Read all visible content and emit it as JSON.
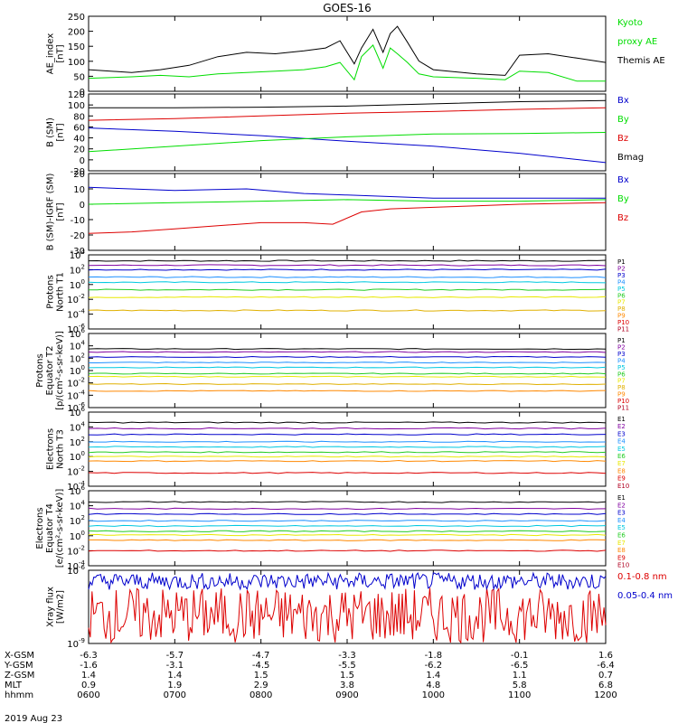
{
  "title": "GOES-16",
  "date_label": "2019 Aug 23",
  "colors": {
    "black": "#000000",
    "green": "#00dd00",
    "blue": "#0000cc",
    "red": "#dd0000"
  },
  "chart_data": [
    {
      "type": "line",
      "ylabel": [
        "AE_index",
        "[nT]"
      ],
      "yticks": [
        "250",
        "200",
        "150",
        "100",
        "50",
        "0"
      ],
      "ylim": [
        0,
        260
      ],
      "legend": [
        {
          "text": "Kyoto",
          "color": "green"
        },
        {
          "text": "proxy AE",
          "color": "green"
        },
        {
          "text": "Themis AE",
          "color": "black"
        }
      ],
      "series": [
        {
          "name": "Themis AE",
          "color": "black",
          "x": [
            "06:00",
            "06:30",
            "06:50",
            "07:10",
            "07:30",
            "07:50",
            "08:10",
            "08:30",
            "08:45",
            "08:55",
            "09:05",
            "09:10",
            "09:18",
            "09:25",
            "09:30",
            "09:35",
            "09:42",
            "09:50",
            "10:00",
            "10:30",
            "10:50",
            "11:00",
            "11:20",
            "11:40",
            "12:00"
          ],
          "y": [
            75,
            65,
            75,
            90,
            120,
            135,
            130,
            140,
            150,
            175,
            95,
            150,
            215,
            135,
            200,
            225,
            170,
            105,
            75,
            60,
            55,
            125,
            130,
            115,
            100
          ]
        },
        {
          "name": "Kyoto proxy AE",
          "color": "green",
          "x": [
            "06:00",
            "06:30",
            "06:50",
            "07:10",
            "07:30",
            "07:50",
            "08:10",
            "08:30",
            "08:45",
            "08:55",
            "09:05",
            "09:10",
            "09:18",
            "09:25",
            "09:30",
            "09:35",
            "09:42",
            "09:50",
            "10:00",
            "10:30",
            "10:50",
            "11:00",
            "11:20",
            "11:40",
            "12:00"
          ],
          "y": [
            45,
            50,
            55,
            50,
            60,
            65,
            70,
            75,
            85,
            100,
            40,
            120,
            160,
            80,
            150,
            130,
            100,
            60,
            50,
            45,
            40,
            70,
            65,
            35,
            35
          ]
        }
      ]
    },
    {
      "type": "line",
      "ylabel": [
        "B (SM)",
        "[nT]"
      ],
      "yticks": [
        "120",
        "100",
        "80",
        "60",
        "40",
        "20",
        "0",
        "-20"
      ],
      "ylim": [
        -20,
        120
      ],
      "legend": [
        {
          "text": "Bx",
          "color": "blue"
        },
        {
          "text": "By",
          "color": "green"
        },
        {
          "text": "Bz",
          "color": "red"
        },
        {
          "text": "Bmag",
          "color": "black"
        }
      ],
      "series": [
        {
          "name": "Bx",
          "color": "blue",
          "x": [
            "06:00",
            "07:00",
            "08:00",
            "09:00",
            "10:00",
            "11:00",
            "12:00"
          ],
          "y": [
            58,
            52,
            44,
            34,
            25,
            12,
            -5
          ]
        },
        {
          "name": "By",
          "color": "green",
          "x": [
            "06:00",
            "07:00",
            "08:00",
            "09:00",
            "10:00",
            "11:00",
            "12:00"
          ],
          "y": [
            15,
            25,
            35,
            42,
            47,
            48,
            50
          ]
        },
        {
          "name": "Bz",
          "color": "red",
          "x": [
            "06:00",
            "07:00",
            "08:00",
            "09:00",
            "10:00",
            "11:00",
            "12:00"
          ],
          "y": [
            72,
            75,
            80,
            85,
            88,
            92,
            95
          ]
        },
        {
          "name": "Bmag",
          "color": "black",
          "x": [
            "06:00",
            "07:00",
            "08:00",
            "09:00",
            "10:00",
            "11:00",
            "12:00"
          ],
          "y": [
            95,
            95,
            96,
            98,
            102,
            106,
            108
          ]
        }
      ]
    },
    {
      "type": "line",
      "ylabel": [
        "B (SM)-IGRF (SM)",
        "[nT]"
      ],
      "yticks": [
        "20",
        "10",
        "0",
        "-10",
        "-20",
        "-30"
      ],
      "ylim": [
        -30,
        20
      ],
      "legend": [
        {
          "text": "Bx",
          "color": "blue"
        },
        {
          "text": "By",
          "color": "green"
        },
        {
          "text": "Bz",
          "color": "red"
        }
      ],
      "series": [
        {
          "name": "Bx",
          "color": "blue",
          "x": [
            "06:00",
            "07:00",
            "07:50",
            "08:30",
            "09:00",
            "09:30",
            "10:00",
            "11:00",
            "12:00"
          ],
          "y": [
            11,
            9,
            10,
            7,
            6,
            5,
            4,
            4,
            4
          ]
        },
        {
          "name": "By",
          "color": "green",
          "x": [
            "06:00",
            "07:00",
            "08:00",
            "09:00",
            "10:00",
            "11:00",
            "12:00"
          ],
          "y": [
            0,
            1,
            2,
            3,
            2,
            2,
            3
          ]
        },
        {
          "name": "Bz",
          "color": "red",
          "x": [
            "06:00",
            "06:30",
            "07:00",
            "07:30",
            "08:00",
            "08:30",
            "08:50",
            "09:10",
            "09:30",
            "10:00",
            "10:30",
            "11:00",
            "12:00"
          ],
          "y": [
            -19,
            -18,
            -16,
            -14,
            -12,
            -12,
            -13,
            -5,
            -3,
            -2,
            -1,
            0,
            1
          ]
        }
      ]
    },
    {
      "type": "line",
      "ylabel": [
        "Protons",
        "North T1"
      ],
      "yticks": [
        "10^4",
        "10^2",
        "10^0",
        "10^-2",
        "10^-4",
        "10^-6"
      ],
      "ylim": [
        -6,
        4
      ],
      "log": true,
      "legend": [
        {
          "text": "P1",
          "color": "black"
        },
        {
          "text": "P2",
          "color": "purple"
        },
        {
          "text": "P3",
          "color": "blue"
        },
        {
          "text": "P4",
          "color": "dodgerblue"
        },
        {
          "text": "P5",
          "color": "cyan"
        },
        {
          "text": "P6",
          "color": "lime"
        },
        {
          "text": "P7",
          "color": "yellow"
        },
        {
          "text": "P8",
          "color": "gold"
        },
        {
          "text": "P9",
          "color": "orange"
        },
        {
          "text": "P10",
          "color": "red"
        },
        {
          "text": "P11",
          "color": "crimson"
        }
      ],
      "levels": [
        3.2,
        2.6,
        2.0,
        1.0,
        0.3,
        -0.7,
        -1.7,
        -3.5
      ]
    },
    {
      "type": "line",
      "ylabel": [
        "Protons",
        "Equator T2",
        "[p/(cm²-s-sr-keV)]"
      ],
      "yticks": [
        "10^6",
        "10^4",
        "10^2",
        "10^0",
        "10^-2",
        "10^-4",
        "10^-6"
      ],
      "ylim": [
        -6,
        6
      ],
      "log": true,
      "legend": [
        {
          "text": "P1",
          "color": "black"
        },
        {
          "text": "P2",
          "color": "purple"
        },
        {
          "text": "P3",
          "color": "blue"
        },
        {
          "text": "P4",
          "color": "dodgerblue"
        },
        {
          "text": "P5",
          "color": "cyan"
        },
        {
          "text": "P6",
          "color": "lime"
        },
        {
          "text": "P7",
          "color": "yellow"
        },
        {
          "text": "P8",
          "color": "gold"
        },
        {
          "text": "P9",
          "color": "orange"
        },
        {
          "text": "P10",
          "color": "red"
        },
        {
          "text": "P11",
          "color": "crimson"
        }
      ],
      "levels": [
        3.5,
        3.0,
        2.2,
        1.3,
        0.5,
        -0.5,
        -1.0,
        -2.2,
        -3.3
      ]
    },
    {
      "type": "line",
      "ylabel": [
        "Electrons",
        "North T3"
      ],
      "yticks": [
        "10^6",
        "10^4",
        "10^2",
        "10^0",
        "10^-2",
        "10^-4"
      ],
      "ylim": [
        -4,
        6
      ],
      "log": true,
      "legend": [
        {
          "text": "E1",
          "color": "black"
        },
        {
          "text": "E2",
          "color": "purple"
        },
        {
          "text": "E3",
          "color": "blue"
        },
        {
          "text": "E4",
          "color": "dodgerblue"
        },
        {
          "text": "E5",
          "color": "cyan"
        },
        {
          "text": "E6",
          "color": "lime"
        },
        {
          "text": "E7",
          "color": "yellow"
        },
        {
          "text": "E8",
          "color": "orange"
        },
        {
          "text": "E9",
          "color": "red"
        },
        {
          "text": "E10",
          "color": "crimson"
        }
      ],
      "levels": [
        4.6,
        3.8,
        3.0,
        2.0,
        1.3,
        0.6,
        0.0,
        -0.6,
        -2.2
      ]
    },
    {
      "type": "line",
      "ylabel": [
        "Electrons",
        "Equator T4",
        "[e/(cm²-s-sr-keV)]"
      ],
      "yticks": [
        "10^6",
        "10^4",
        "10^2",
        "10^0",
        "10^-2",
        "10^-4"
      ],
      "ylim": [
        -4,
        6
      ],
      "log": true,
      "legend": [
        {
          "text": "E1",
          "color": "black"
        },
        {
          "text": "E2",
          "color": "purple"
        },
        {
          "text": "E3",
          "color": "blue"
        },
        {
          "text": "E4",
          "color": "dodgerblue"
        },
        {
          "text": "E5",
          "color": "cyan"
        },
        {
          "text": "E6",
          "color": "lime"
        },
        {
          "text": "E7",
          "color": "yellow"
        },
        {
          "text": "E8",
          "color": "orange"
        },
        {
          "text": "E9",
          "color": "red"
        },
        {
          "text": "E10",
          "color": "crimson"
        }
      ],
      "levels": [
        4.5,
        3.6,
        2.9,
        2.0,
        1.3,
        0.6,
        0.1,
        -0.6,
        -2.0
      ]
    },
    {
      "type": "line",
      "ylabel": [
        "Xray flux",
        "[W/m2]"
      ],
      "yticks": [
        "10^-6",
        "10^-9"
      ],
      "ylim": [
        -9,
        -6
      ],
      "log": true,
      "legend": [
        {
          "text": "0.1-0.8 nm",
          "color": "red"
        },
        {
          "text": "0.05-0.4 nm",
          "color": "blue"
        }
      ],
      "series": [
        {
          "name": "0.1-0.8 nm",
          "color": "red",
          "level_range": [
            -9,
            -6.7
          ]
        },
        {
          "name": "0.05-0.4 nm",
          "color": "blue",
          "level_range": [
            -6.8,
            -6.1
          ]
        }
      ]
    }
  ],
  "x_axis": {
    "rows": [
      {
        "label": "X-GSM",
        "values": [
          "-6.3",
          "-5.7",
          "-4.7",
          "-3.3",
          "-1.8",
          "-0.1",
          "1.6"
        ]
      },
      {
        "label": "Y-GSM",
        "values": [
          "-1.6",
          "-3.1",
          "-4.5",
          "-5.5",
          "-6.2",
          "-6.5",
          "-6.4"
        ]
      },
      {
        "label": "Z-GSM",
        "values": [
          "1.4",
          "1.4",
          "1.5",
          "1.5",
          "1.4",
          "1.1",
          "0.7"
        ]
      },
      {
        "label": "MLT",
        "values": [
          "0.9",
          "1.9",
          "2.9",
          "3.8",
          "4.8",
          "5.8",
          "6.8"
        ]
      },
      {
        "label": "hhmm",
        "values": [
          "0600",
          "0700",
          "0800",
          "0900",
          "1000",
          "1100",
          "1200"
        ]
      }
    ]
  }
}
